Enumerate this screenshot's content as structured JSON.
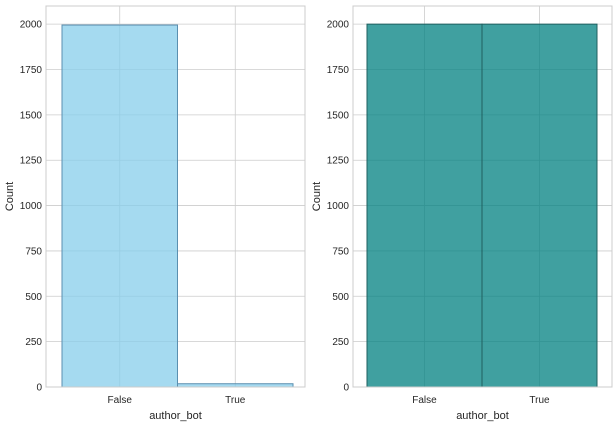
{
  "chart_data": [
    {
      "type": "bar",
      "xlabel": "author_bot",
      "ylabel": "Count",
      "categories": [
        "False",
        "True"
      ],
      "values": [
        1995,
        18
      ],
      "ylim": [
        0,
        2100
      ],
      "yticks": [
        0,
        250,
        500,
        750,
        1000,
        1250,
        1500,
        1750,
        2000
      ],
      "grid": true,
      "bar_color": "#87CEEB",
      "bar_edge_color": "#5a8fb0"
    },
    {
      "type": "bar",
      "xlabel": "author_bot",
      "ylabel": "Count",
      "categories": [
        "False",
        "True"
      ],
      "values": [
        2000,
        2000
      ],
      "ylim": [
        0,
        2100
      ],
      "yticks": [
        0,
        250,
        500,
        750,
        1000,
        1250,
        1500,
        1750,
        2000
      ],
      "grid": true,
      "bar_color": "#008080",
      "bar_edge_color": "#1f5f5f"
    }
  ]
}
